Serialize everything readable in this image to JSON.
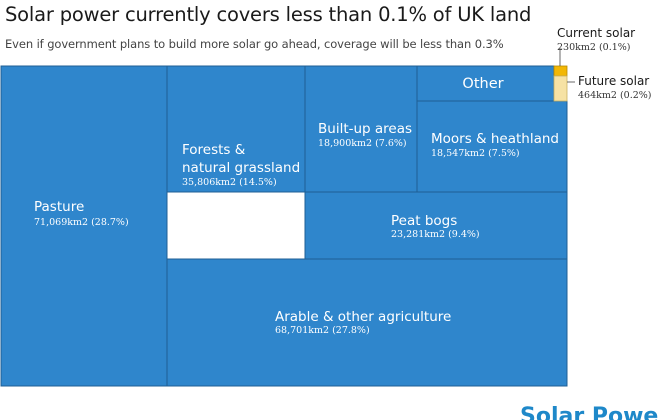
{
  "chart_data": {
    "type": "treemap",
    "title": "Solar power currently covers less than 0.1% of UK land",
    "subtitle": "Even if government plans to build more solar go ahead, coverage will be less than 0.3%",
    "tiles": [
      {
        "label": "Pasture",
        "value_text": "71,069km2 (28.7%)",
        "value": 71069,
        "percent": 28.7
      },
      {
        "label": "Arable & other agriculture",
        "value_text": "68,701km2 (27.8%)",
        "value": 68701,
        "percent": 27.8
      },
      {
        "label": "Forests & natural grassland",
        "value_text": "35,806km2 (14.5%)",
        "value": 35806,
        "percent": 14.5
      },
      {
        "label": "Peat bogs",
        "value_text": "23,281km2 (9.4%)",
        "value": 23281,
        "percent": 9.4
      },
      {
        "label": "Built-up areas",
        "value_text": "18,900km2 (7.6%)",
        "value": 18900,
        "percent": 7.6
      },
      {
        "label": "Moors & heathland",
        "value_text": "18,547km2 (7.5%)",
        "value": 18547,
        "percent": 7.5
      },
      {
        "label": "Other",
        "value_text": "",
        "value": null,
        "percent": null
      },
      {
        "label": "Current solar",
        "value_text": "230km2 (0.1%)",
        "value": 230,
        "percent": 0.1
      },
      {
        "label": "Future solar",
        "value_text": "464km2 (0.2%)",
        "value": 464,
        "percent": 0.2
      }
    ],
    "colors": {
      "tile": "#2f86cc",
      "tile_border": "#1f5f94",
      "current_solar": "#f2b705",
      "future_solar": "#f6e2a4"
    }
  },
  "footer": {
    "logo_text": "Solar Power"
  }
}
